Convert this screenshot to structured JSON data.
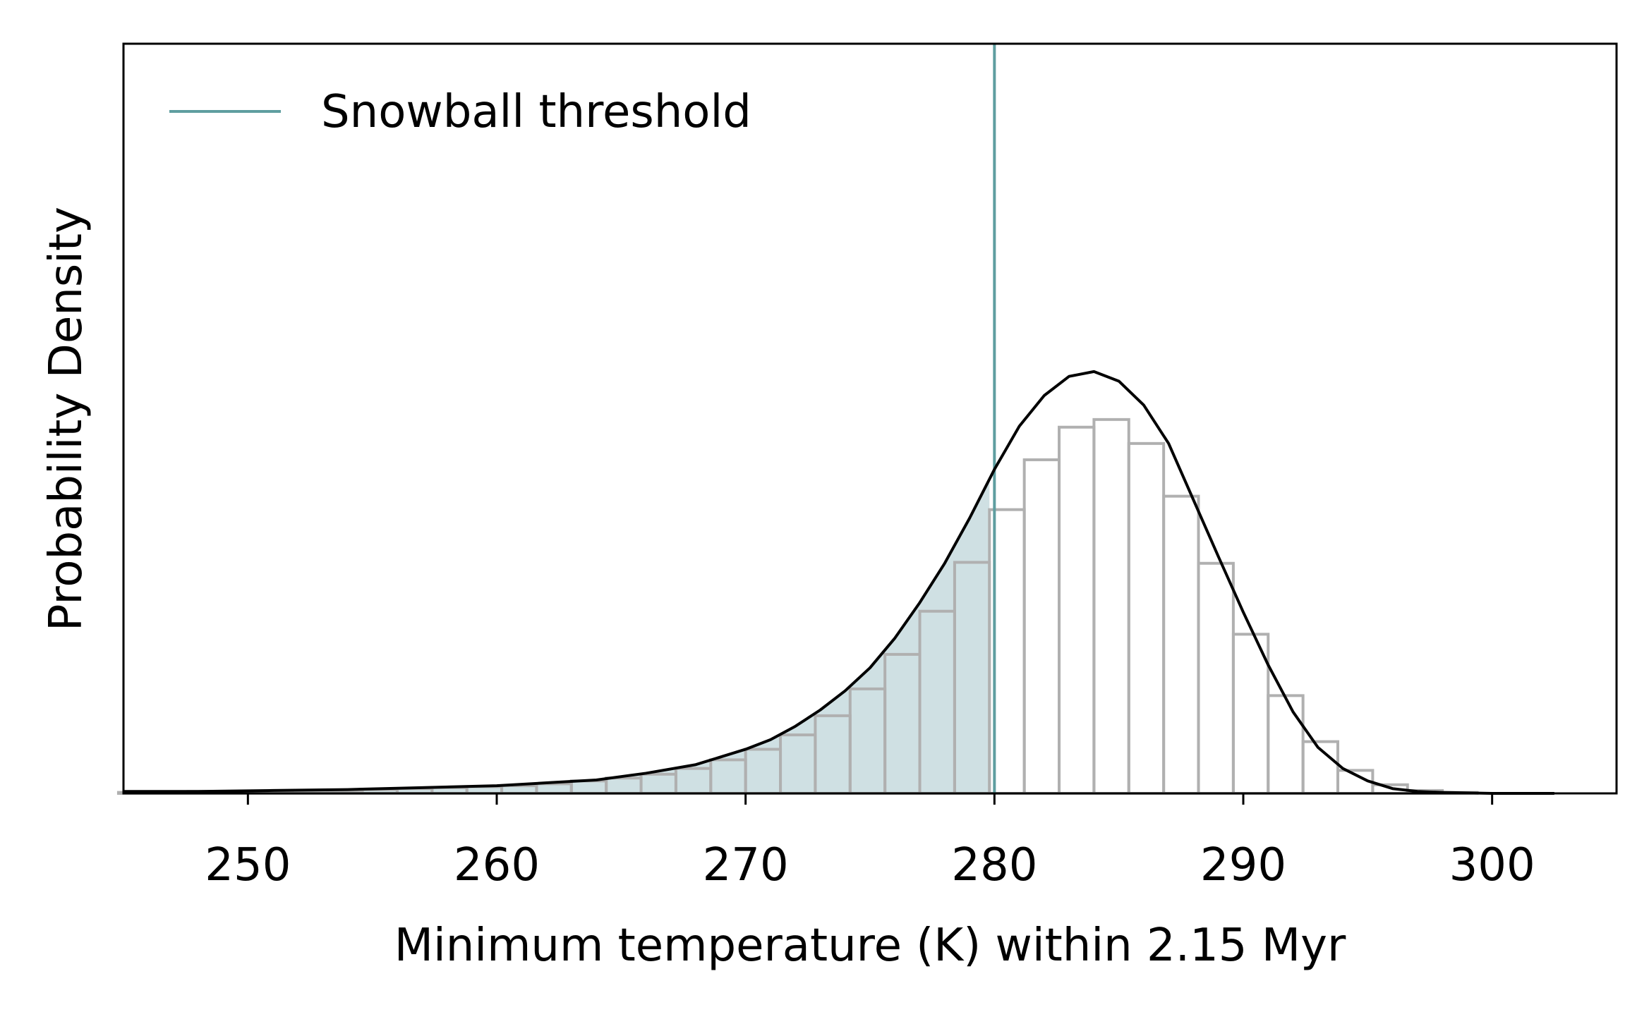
{
  "chart_data": {
    "type": "histogram+line",
    "xlabel": "Minimum temperature (K) within 2.15 Myr",
    "ylabel": "Probability Density",
    "xlim": [
      245,
      305
    ],
    "ylim": [
      0,
      0.0782
    ],
    "xticks": [
      250,
      260,
      270,
      280,
      290,
      300
    ],
    "yticks": [],
    "grid": false,
    "legend": {
      "placement": "top-left",
      "entries": [
        {
          "label": "Snowball threshold",
          "type": "line",
          "color": "#5f9ea0"
        }
      ]
    },
    "threshold": {
      "x": 280.0,
      "label": "Snowball threshold",
      "color": "#5f9ea0"
    },
    "histogram": {
      "color": "#b0b0b0",
      "bin_edges": [
        244.8,
        246.2,
        247.6,
        249.0,
        250.4,
        251.8,
        253.2,
        254.6,
        256.0,
        257.4,
        258.8,
        260.2,
        261.6,
        263.0,
        264.4,
        265.8,
        267.2,
        268.6,
        270.0,
        271.4,
        272.8,
        274.2,
        275.6,
        277.0,
        278.4,
        279.8,
        281.2,
        282.6,
        284.0,
        285.4,
        286.8,
        288.2,
        289.6,
        291.0,
        292.4,
        293.8,
        295.2,
        296.6,
        298.0,
        299.4,
        300.8,
        302.2
      ],
      "densities": [
        0.0001,
        0.0001,
        0.0002,
        0.0002,
        0.0002,
        0.0003,
        0.0003,
        0.0004,
        0.0005,
        0.0006,
        0.0007,
        0.0008,
        0.001,
        0.0013,
        0.0016,
        0.002,
        0.0026,
        0.0035,
        0.0046,
        0.0061,
        0.0081,
        0.0109,
        0.0145,
        0.019,
        0.0241,
        0.0296,
        0.0348,
        0.0382,
        0.039,
        0.0365,
        0.031,
        0.024,
        0.0166,
        0.0102,
        0.0054,
        0.0024,
        0.0009,
        0.0003,
        0.0001,
        0.0,
        0.0
      ]
    },
    "kde": {
      "color": "#000000",
      "x": [
        245,
        248,
        251,
        254,
        257,
        260,
        262,
        264,
        266,
        268,
        270,
        271,
        272,
        273,
        274,
        275,
        276,
        277,
        278,
        279,
        280,
        281,
        282,
        283,
        284,
        285,
        286,
        287,
        288,
        289,
        290,
        291,
        292,
        293,
        294,
        295,
        296,
        297,
        298,
        300,
        302.5
      ],
      "y": [
        0.0002,
        0.0002,
        0.0003,
        0.0004,
        0.0006,
        0.0008,
        0.0011,
        0.0014,
        0.0021,
        0.003,
        0.0046,
        0.0056,
        0.007,
        0.0087,
        0.0107,
        0.0131,
        0.0162,
        0.0199,
        0.024,
        0.0287,
        0.0338,
        0.0383,
        0.0415,
        0.0435,
        0.044,
        0.043,
        0.0405,
        0.0365,
        0.0306,
        0.0247,
        0.0189,
        0.0134,
        0.0085,
        0.0048,
        0.0026,
        0.0013,
        0.0005,
        0.0002,
        0.0001,
        0.0,
        0.0
      ]
    },
    "shaded_region": {
      "from": 244.8,
      "to": 279.8,
      "color": "#cfe0e3"
    }
  }
}
